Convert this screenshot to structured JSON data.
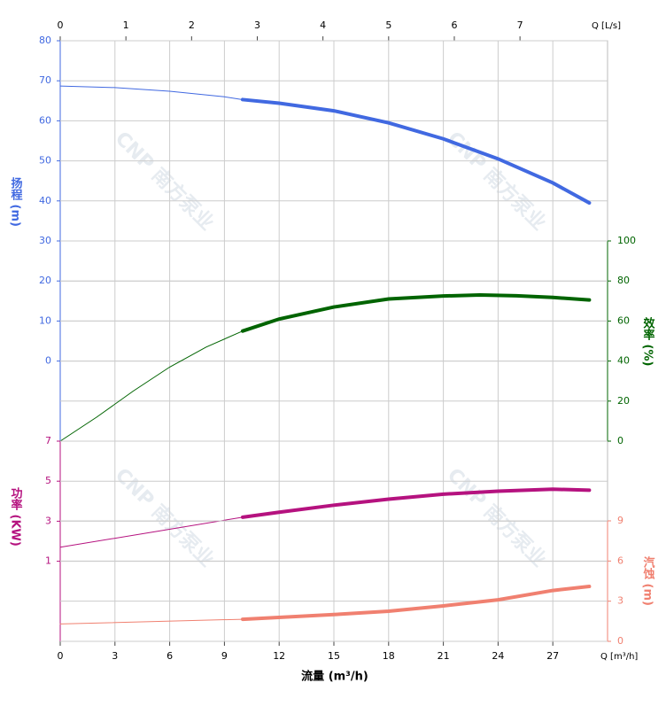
{
  "chart_data": {
    "type": "line",
    "x_axis_title": "流量 (m³/h)",
    "x_unit_label": "Q [m³/h]",
    "x2_unit_label": "Q [L/s]",
    "xlim": [
      0,
      30
    ],
    "xticks": [
      0,
      3,
      6,
      9,
      12,
      15,
      18,
      21,
      24,
      27
    ],
    "x2lim": [
      0,
      8.333
    ],
    "x2ticks": [
      0,
      1,
      2,
      3,
      4,
      5,
      6,
      7
    ],
    "operating_range": [
      10,
      29
    ],
    "grid": true,
    "watermark": "CNP 南方泵业",
    "series": [
      {
        "name": "扬程 (m)",
        "color": "#4169e1",
        "ylim": [
          -20,
          80
        ],
        "yticks": [
          0,
          10,
          20,
          30,
          40,
          50,
          60,
          70,
          80
        ],
        "x": [
          0,
          3,
          6,
          9,
          10,
          12,
          15,
          18,
          21,
          24,
          27,
          29
        ],
        "values": [
          68.7,
          68.3,
          67.4,
          66,
          65.3,
          64.4,
          62.5,
          59.5,
          55.5,
          50.5,
          44.5,
          39.5
        ]
      },
      {
        "name": "效率 (%)",
        "color": "#006400",
        "ylim": [
          0,
          100
        ],
        "yticks": [
          0,
          20,
          40,
          60,
          80,
          100
        ],
        "x": [
          0,
          2,
          4,
          6,
          8,
          10,
          12,
          15,
          18,
          21,
          23,
          25,
          27,
          29
        ],
        "values": [
          0,
          12,
          25,
          37,
          47,
          55,
          61,
          67,
          71,
          72.5,
          73,
          72.6,
          71.8,
          70.5
        ]
      },
      {
        "name": "功率 (KW)",
        "color": "#b5127f",
        "ylim": [
          -3,
          7
        ],
        "yticks": [
          1,
          3,
          5,
          7
        ],
        "x": [
          0,
          5,
          10,
          12,
          15,
          18,
          21,
          24,
          27,
          29
        ],
        "values": [
          1.7,
          2.45,
          3.2,
          3.45,
          3.8,
          4.1,
          4.35,
          4.5,
          4.6,
          4.55
        ]
      },
      {
        "name": "汽蚀 (m)",
        "color": "#f08070",
        "ylim": [
          0,
          9
        ],
        "yticks": [
          0,
          3,
          6,
          9
        ],
        "x": [
          0,
          10,
          15,
          18,
          21,
          24,
          27,
          29
        ],
        "values": [
          1.3,
          1.65,
          2.0,
          2.25,
          2.65,
          3.1,
          3.8,
          4.1
        ]
      }
    ]
  }
}
